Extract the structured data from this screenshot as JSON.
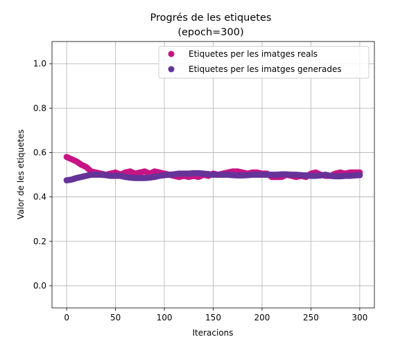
{
  "chart_data": {
    "type": "scatter",
    "title": "Progrés de les etiquetes",
    "subtitle": "(epoch=300)",
    "xlabel": "Iteracions",
    "ylabel": "Valor de les etiquetes",
    "xlim": [
      -15,
      315
    ],
    "ylim": [
      -0.1,
      1.1
    ],
    "xticks": [
      0,
      50,
      100,
      150,
      200,
      250,
      300
    ],
    "xtick_labels": [
      "0",
      "50",
      "100",
      "150",
      "200",
      "250",
      "300"
    ],
    "yticks": [
      0.0,
      0.2,
      0.4,
      0.6,
      0.8,
      1.0
    ],
    "ytick_labels": [
      "0.0",
      "0.2",
      "0.4",
      "0.6",
      "0.8",
      "1.0"
    ],
    "grid": true,
    "legend_position": "top-right",
    "series": [
      {
        "name": "Etiquetes per les imatges reals",
        "color": "#c71585",
        "x": [
          0,
          5,
          10,
          15,
          20,
          25,
          30,
          35,
          40,
          45,
          50,
          55,
          60,
          65,
          70,
          75,
          80,
          85,
          90,
          95,
          100,
          105,
          110,
          115,
          120,
          125,
          130,
          135,
          140,
          145,
          150,
          155,
          160,
          165,
          170,
          175,
          180,
          185,
          190,
          195,
          200,
          205,
          210,
          215,
          220,
          225,
          230,
          235,
          240,
          245,
          250,
          255,
          260,
          265,
          270,
          275,
          280,
          285,
          290,
          295,
          300
        ],
        "y": [
          0.58,
          0.57,
          0.56,
          0.545,
          0.535,
          0.515,
          0.51,
          0.505,
          0.5,
          0.505,
          0.51,
          0.5,
          0.51,
          0.515,
          0.505,
          0.51,
          0.515,
          0.505,
          0.515,
          0.51,
          0.505,
          0.5,
          0.495,
          0.49,
          0.495,
          0.49,
          0.495,
          0.49,
          0.5,
          0.495,
          0.505,
          0.5,
          0.505,
          0.51,
          0.515,
          0.515,
          0.51,
          0.505,
          0.51,
          0.51,
          0.505,
          0.505,
          0.49,
          0.49,
          0.49,
          0.5,
          0.495,
          0.49,
          0.495,
          0.49,
          0.505,
          0.51,
          0.5,
          0.495,
          0.495,
          0.505,
          0.51,
          0.505,
          0.51,
          0.51,
          0.51
        ]
      },
      {
        "name": "Etiquetes per les imatges generades",
        "color": "#663399",
        "x": [
          0,
          5,
          10,
          15,
          20,
          25,
          30,
          35,
          40,
          45,
          50,
          55,
          60,
          65,
          70,
          75,
          80,
          85,
          90,
          95,
          100,
          105,
          110,
          115,
          120,
          125,
          130,
          135,
          140,
          145,
          150,
          155,
          160,
          165,
          170,
          175,
          180,
          185,
          190,
          195,
          200,
          205,
          210,
          215,
          220,
          225,
          230,
          235,
          240,
          245,
          250,
          255,
          260,
          265,
          270,
          275,
          280,
          285,
          290,
          295,
          300
        ],
        "y": [
          0.475,
          0.478,
          0.485,
          0.49,
          0.495,
          0.5,
          0.5,
          0.5,
          0.498,
          0.495,
          0.495,
          0.495,
          0.49,
          0.487,
          0.485,
          0.485,
          0.485,
          0.487,
          0.49,
          0.495,
          0.498,
          0.5,
          0.502,
          0.505,
          0.505,
          0.505,
          0.507,
          0.507,
          0.505,
          0.503,
          0.5,
          0.5,
          0.5,
          0.5,
          0.498,
          0.497,
          0.497,
          0.498,
          0.5,
          0.5,
          0.5,
          0.5,
          0.5,
          0.5,
          0.502,
          0.502,
          0.5,
          0.5,
          0.498,
          0.497,
          0.495,
          0.495,
          0.497,
          0.5,
          0.495,
          0.493,
          0.493,
          0.495,
          0.495,
          0.497,
          0.498
        ]
      }
    ]
  }
}
